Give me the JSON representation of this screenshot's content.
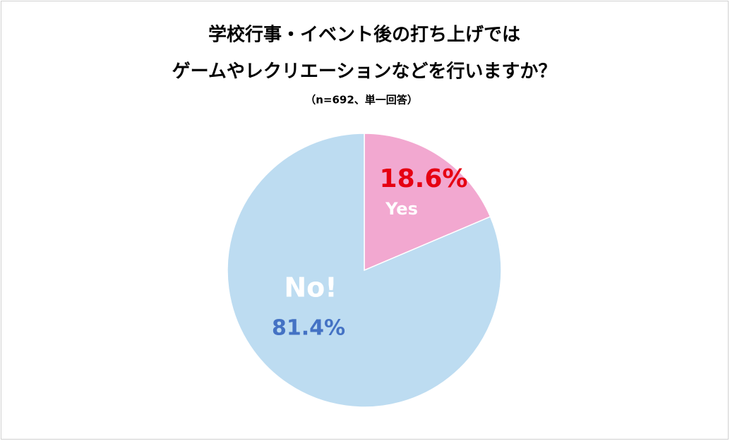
{
  "chart_data": {
    "type": "pie",
    "title": [
      "学校行事・イベント後の打ち上げでは",
      "ゲームやレクリエーションなどを行いますか？"
    ],
    "subtitle": "（n=692、単一回答）",
    "categories": [
      "Yes",
      "No!"
    ],
    "values": [
      18.6,
      81.4
    ],
    "value_labels": [
      "18.6%",
      "81.4%"
    ],
    "colors": [
      "#f2a8d0",
      "#bddcf1"
    ],
    "value_label_colors": [
      "#e60012",
      "#4472c4"
    ]
  }
}
